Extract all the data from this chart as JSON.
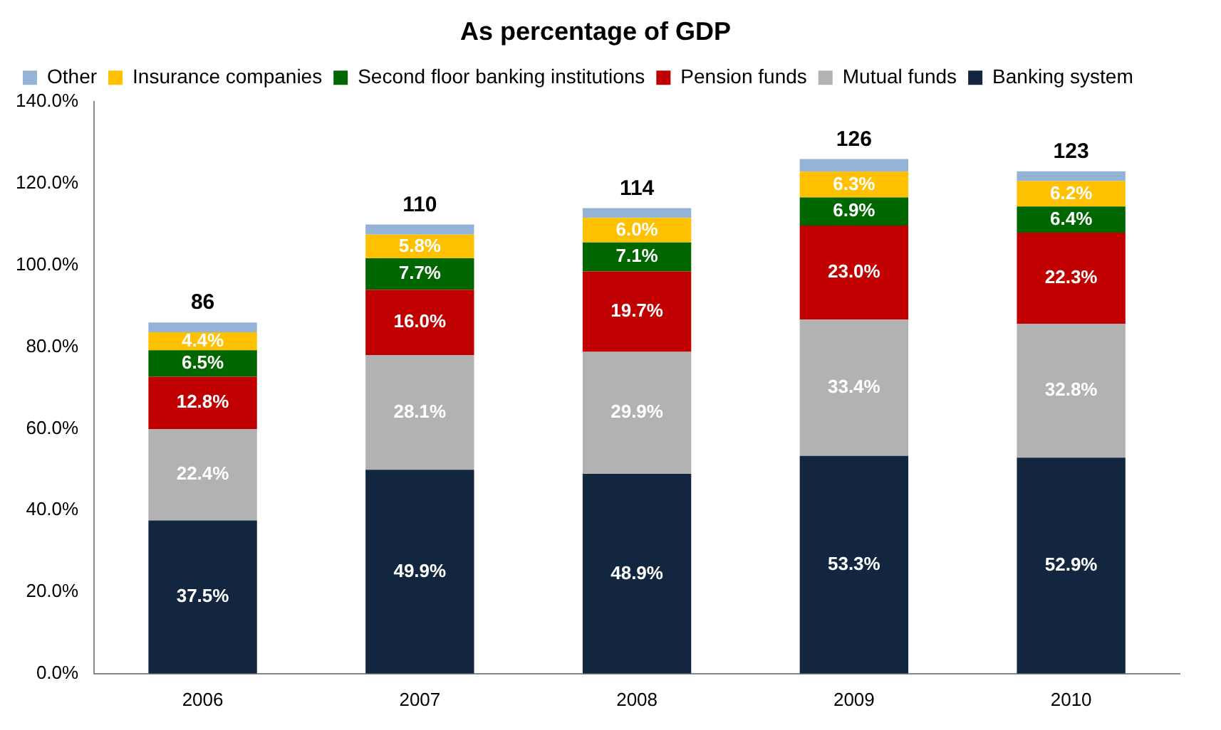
{
  "chart_data": {
    "type": "bar",
    "title": "As percentage of GDP",
    "stacked": true,
    "categories": [
      "2006",
      "2007",
      "2008",
      "2009",
      "2010"
    ],
    "series": [
      {
        "name": "Banking system",
        "color": "#12263f",
        "values": [
          37.5,
          49.9,
          48.9,
          53.3,
          52.9
        ],
        "value_labels": [
          "37.5%",
          "49.9%",
          "48.9%",
          "53.3%",
          "52.9%"
        ]
      },
      {
        "name": "Mutual funds",
        "color": "#b2b2b2",
        "values": [
          22.4,
          28.1,
          29.9,
          33.4,
          32.8
        ],
        "value_labels": [
          "22.4%",
          "28.1%",
          "29.9%",
          "33.4%",
          "32.8%"
        ]
      },
      {
        "name": "Pension funds",
        "color": "#c00000",
        "values": [
          12.8,
          16.0,
          19.7,
          23.0,
          22.3
        ],
        "value_labels": [
          "12.8%",
          "16.0%",
          "19.7%",
          "23.0%",
          "22.3%"
        ]
      },
      {
        "name": "Second floor banking institutions",
        "color": "#006600",
        "values": [
          6.5,
          7.7,
          7.1,
          6.9,
          6.4
        ],
        "value_labels": [
          "6.5%",
          "7.7%",
          "7.1%",
          "6.9%",
          "6.4%"
        ]
      },
      {
        "name": "Insurance companies",
        "color": "#ffc000",
        "values": [
          4.4,
          5.8,
          6.0,
          6.3,
          6.2
        ],
        "value_labels": [
          "4.4%",
          "5.8%",
          "6.0%",
          "6.3%",
          "6.2%"
        ]
      },
      {
        "name": "Other",
        "color": "#95b3d7",
        "values": [
          2.4,
          2.5,
          2.4,
          3.1,
          2.4
        ]
      }
    ],
    "totals": [
      "86",
      "110",
      "114",
      "126",
      "123"
    ],
    "ylim": [
      0,
      140
    ],
    "yticks": [
      {
        "value": 0,
        "label": "0.0%"
      },
      {
        "value": 20,
        "label": "20.0%"
      },
      {
        "value": 40,
        "label": "40.0%"
      },
      {
        "value": 60,
        "label": "60.0%"
      },
      {
        "value": 80,
        "label": "80.0%"
      },
      {
        "value": 100,
        "label": "100.0%"
      },
      {
        "value": 120,
        "label": "120.0%"
      },
      {
        "value": 140,
        "label": "140.0%"
      }
    ],
    "grid": false,
    "legend": "top left"
  }
}
